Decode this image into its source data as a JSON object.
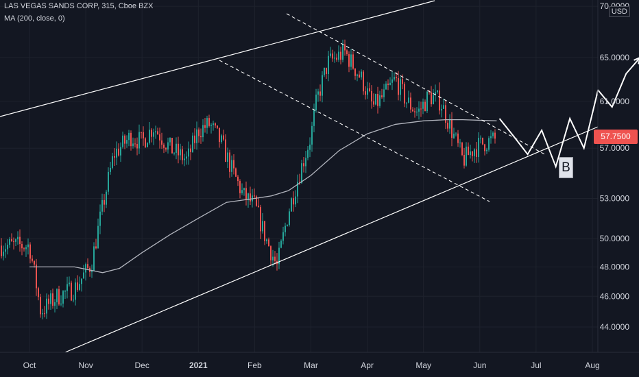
{
  "header": {
    "symbol_line": "LAS VEGAS SANDS CORP, 315, Cboe BZX",
    "indicator_line": "MA (200, close, 0)"
  },
  "price_axis": {
    "unit": "USD",
    "ticks": [
      "70.0000",
      "65.0000",
      "61.0000",
      "57.0000",
      "53.0000",
      "50.0000",
      "48.0000",
      "46.0000",
      "44.0000"
    ],
    "current_price": "57.7500"
  },
  "time_axis": {
    "labels": [
      "Oct",
      "Nov",
      "Dec",
      "2021",
      "Feb",
      "Mar",
      "Apr",
      "May",
      "Jun",
      "Jul",
      "Aug"
    ]
  },
  "annotation": {
    "label": "B"
  },
  "colors": {
    "background": "#131722",
    "up": "#26a69a",
    "down": "#ef5350",
    "ma": "#b2b5be",
    "lines": "#ffffff"
  },
  "chart_data": {
    "type": "line",
    "scale": "log",
    "ylim": [
      42.5,
      70.5
    ],
    "x_categories": [
      "Oct",
      "Nov",
      "Dec",
      "2021",
      "Feb",
      "Mar",
      "Apr",
      "May",
      "Jun",
      "Jul",
      "Aug"
    ],
    "series": [
      {
        "kind": "close_approx",
        "x": [
          0,
          0.2,
          0.5,
          0.8,
          1.1,
          1.5,
          1.8,
          2.0,
          2.2,
          2.5,
          2.8,
          3.0,
          3.2,
          3.4,
          3.6,
          3.8,
          4.0,
          4.2,
          4.4,
          4.6,
          4.8,
          5.0,
          5.1,
          5.3,
          5.6,
          5.9,
          6.1,
          6.3,
          6.5,
          6.7,
          6.9,
          7.1,
          7.3,
          7.5,
          7.7,
          7.9,
          8.1,
          8.3
        ],
        "values": [
          49.5,
          45.0,
          46.0,
          46.5,
          48.2,
          56.5,
          58.0,
          57.5,
          58.8,
          57.0,
          56.0,
          58.5,
          59.0,
          57.5,
          55.2,
          53.2,
          52.5,
          50.0,
          48.0,
          52.0,
          55.0,
          58.0,
          61.0,
          64.5,
          65.5,
          63.0,
          60.5,
          61.5,
          63.0,
          61.0,
          60.0,
          61.5,
          61.0,
          58.5,
          56.0,
          57.0,
          57.5,
          57.75
        ]
      },
      {
        "name": "MA (200, close, 0)",
        "kind": "moving_average",
        "x": [
          0,
          0.8,
          1.3,
          1.6,
          2.0,
          2.5,
          3.0,
          3.5,
          4.0,
          4.3,
          4.6,
          5.0,
          5.5,
          6.0,
          6.5,
          7.0,
          7.4,
          7.7,
          8.3
        ],
        "values": [
          48.0,
          48.0,
          47.6,
          47.9,
          49.0,
          50.3,
          51.5,
          52.7,
          53.0,
          53.2,
          53.6,
          54.8,
          56.8,
          58.2,
          59.0,
          59.3,
          59.4,
          59.4,
          59.3
        ]
      },
      {
        "kind": "projection",
        "x": [
          8.35,
          8.6,
          8.85,
          9.1,
          9.35,
          9.6,
          9.85,
          10.1,
          10.35,
          10.6,
          10.85
        ],
        "values": [
          59.5,
          58.0,
          56.5,
          58.5,
          55.5,
          59.5,
          57.0,
          62.0,
          60.5,
          63.5,
          65.0
        ]
      }
    ]
  }
}
